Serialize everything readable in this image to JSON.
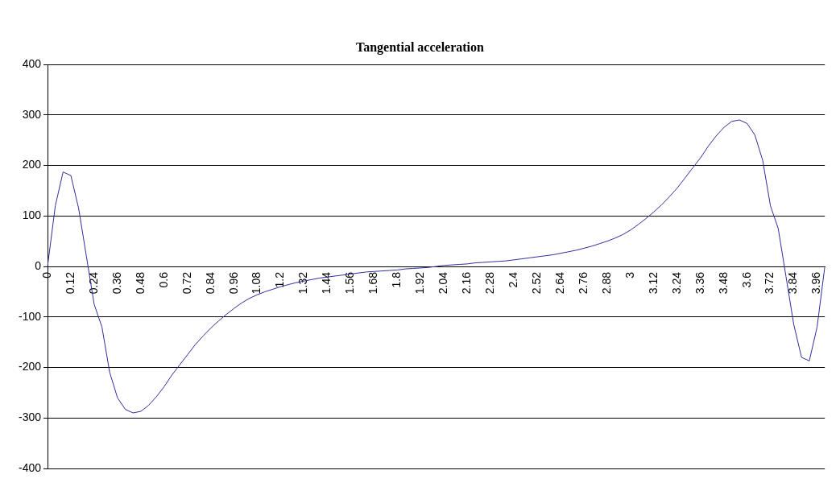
{
  "chart_data": {
    "type": "line",
    "title": "Tangential acceleration",
    "categories": [
      "0",
      null,
      null,
      "0.12",
      null,
      null,
      "0.24",
      null,
      null,
      "0.36",
      null,
      null,
      "0.48",
      null,
      null,
      "0.6",
      null,
      null,
      "0.72",
      null,
      null,
      "0.84",
      null,
      null,
      "0.96",
      null,
      null,
      "1.08",
      null,
      null,
      "1.2",
      null,
      null,
      "1.32",
      null,
      null,
      "1.44",
      null,
      null,
      "1.56",
      null,
      null,
      "1.68",
      null,
      null,
      "1.8",
      null,
      null,
      "1.92",
      null,
      null,
      "2.04",
      null,
      null,
      "2.16",
      null,
      null,
      "2.28",
      null,
      null,
      "2.4",
      null,
      null,
      "2.52",
      null,
      null,
      "2.64",
      null,
      null,
      "2.76",
      null,
      null,
      "2.88",
      null,
      null,
      "3",
      null,
      null,
      "3.12",
      null,
      null,
      "3.24",
      null,
      null,
      "3.36",
      null,
      null,
      "3.48",
      null,
      null,
      "3.6",
      null,
      null,
      "3.72",
      null,
      null,
      "3.84",
      null,
      null,
      "3.96",
      null
    ],
    "series": [
      {
        "color": "#2e2e9e",
        "values": [
          0,
          120,
          187,
          180,
          115,
          20,
          -75,
          -120,
          -210,
          -260,
          -283,
          -290,
          -287,
          -275,
          -258,
          -238,
          -215,
          -195,
          -175,
          -155,
          -138,
          -122,
          -108,
          -95,
          -83,
          -72,
          -63,
          -56,
          -50,
          -45,
          -40,
          -36,
          -32,
          -29,
          -26,
          -23,
          -21,
          -19,
          -17,
          -15,
          -13,
          -11,
          -10,
          -9,
          -8,
          -7,
          -5,
          -4,
          -3,
          -2,
          0,
          2,
          3,
          4,
          5,
          7,
          8,
          9,
          10,
          11,
          13,
          15,
          17,
          19,
          21,
          23,
          26,
          29,
          32,
          36,
          40,
          45,
          50,
          56,
          63,
          72,
          83,
          95,
          108,
          122,
          138,
          155,
          175,
          195,
          215,
          238,
          258,
          275,
          287,
          290,
          283,
          260,
          210,
          120,
          75,
          -20,
          -115,
          -180,
          -187,
          -120,
          0
        ]
      }
    ],
    "ylim": [
      -400,
      400
    ],
    "yticks": [
      -400,
      -300,
      -200,
      -100,
      0,
      100,
      200,
      300,
      400
    ],
    "grid": "y",
    "legend": false,
    "marker": "none",
    "line_style": "solid"
  }
}
